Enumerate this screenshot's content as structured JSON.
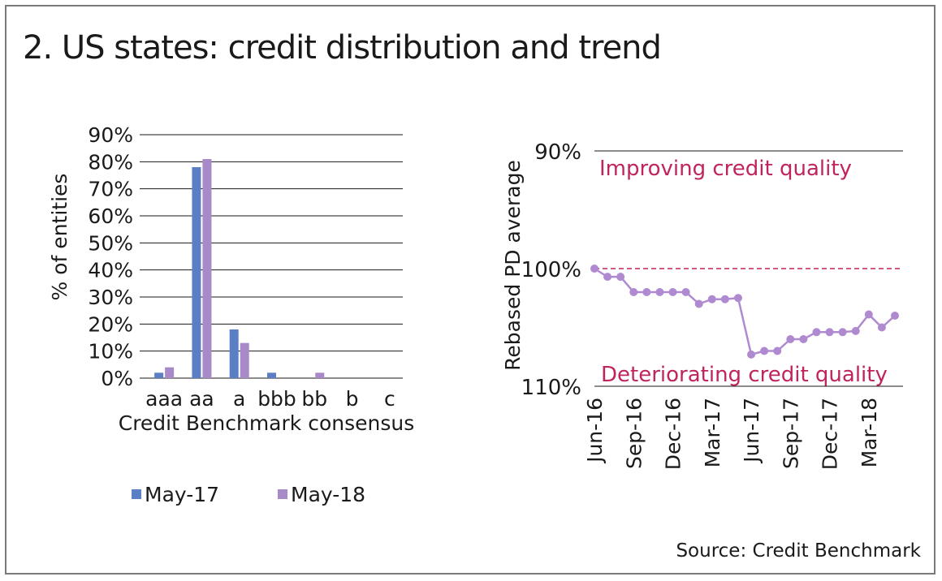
{
  "title": "2. US states: credit distribution and trend",
  "source": "Source: Credit Benchmark",
  "colors": {
    "may17": "#5b7fc4",
    "may18": "#a98ac9",
    "line": "#b08ad0",
    "ref": "#c0245e",
    "grid": "#1a1a1a",
    "text": "#1a1a1a"
  },
  "chart_data": [
    {
      "type": "bar",
      "title": "",
      "xlabel": "Credit Benchmark consensus",
      "ylabel": "% of entities",
      "ylim": [
        0,
        90
      ],
      "yticks": [
        "0%",
        "10%",
        "20%",
        "30%",
        "40%",
        "50%",
        "60%",
        "70%",
        "80%",
        "90%"
      ],
      "categories": [
        "aaa",
        "aa",
        "a",
        "bbb",
        "bb",
        "b",
        "c"
      ],
      "series": [
        {
          "name": "May-17",
          "values": [
            2,
            78,
            18,
            2,
            0,
            0,
            0
          ]
        },
        {
          "name": "May-18",
          "values": [
            4,
            81,
            13,
            0,
            2,
            0,
            0
          ]
        }
      ],
      "legend": "bottom"
    },
    {
      "type": "line",
      "title": "",
      "xlabel": "",
      "ylabel": "Rebased PD average",
      "ylim": [
        110,
        90
      ],
      "yticks": [
        "90%",
        "100%",
        "110%"
      ],
      "ytick_values": [
        90,
        100,
        110
      ],
      "xticks": [
        "Jun-16",
        "Sep-16",
        "Dec-16",
        "Mar-17",
        "Jun-17",
        "Sep-17",
        "Dec-17",
        "Mar-18"
      ],
      "reference_value": 100,
      "annotations": [
        "Improving credit quality",
        "Deteriorating credit quality"
      ],
      "series": [
        {
          "name": "Rebased PD average",
          "values": [
            100,
            100.7,
            100.7,
            102,
            102,
            102,
            102,
            102,
            103,
            102.6,
            102.6,
            102.5,
            107.3,
            107,
            107,
            106,
            106,
            105.4,
            105.4,
            105.4,
            105.3,
            103.9,
            105,
            104
          ]
        }
      ]
    }
  ]
}
